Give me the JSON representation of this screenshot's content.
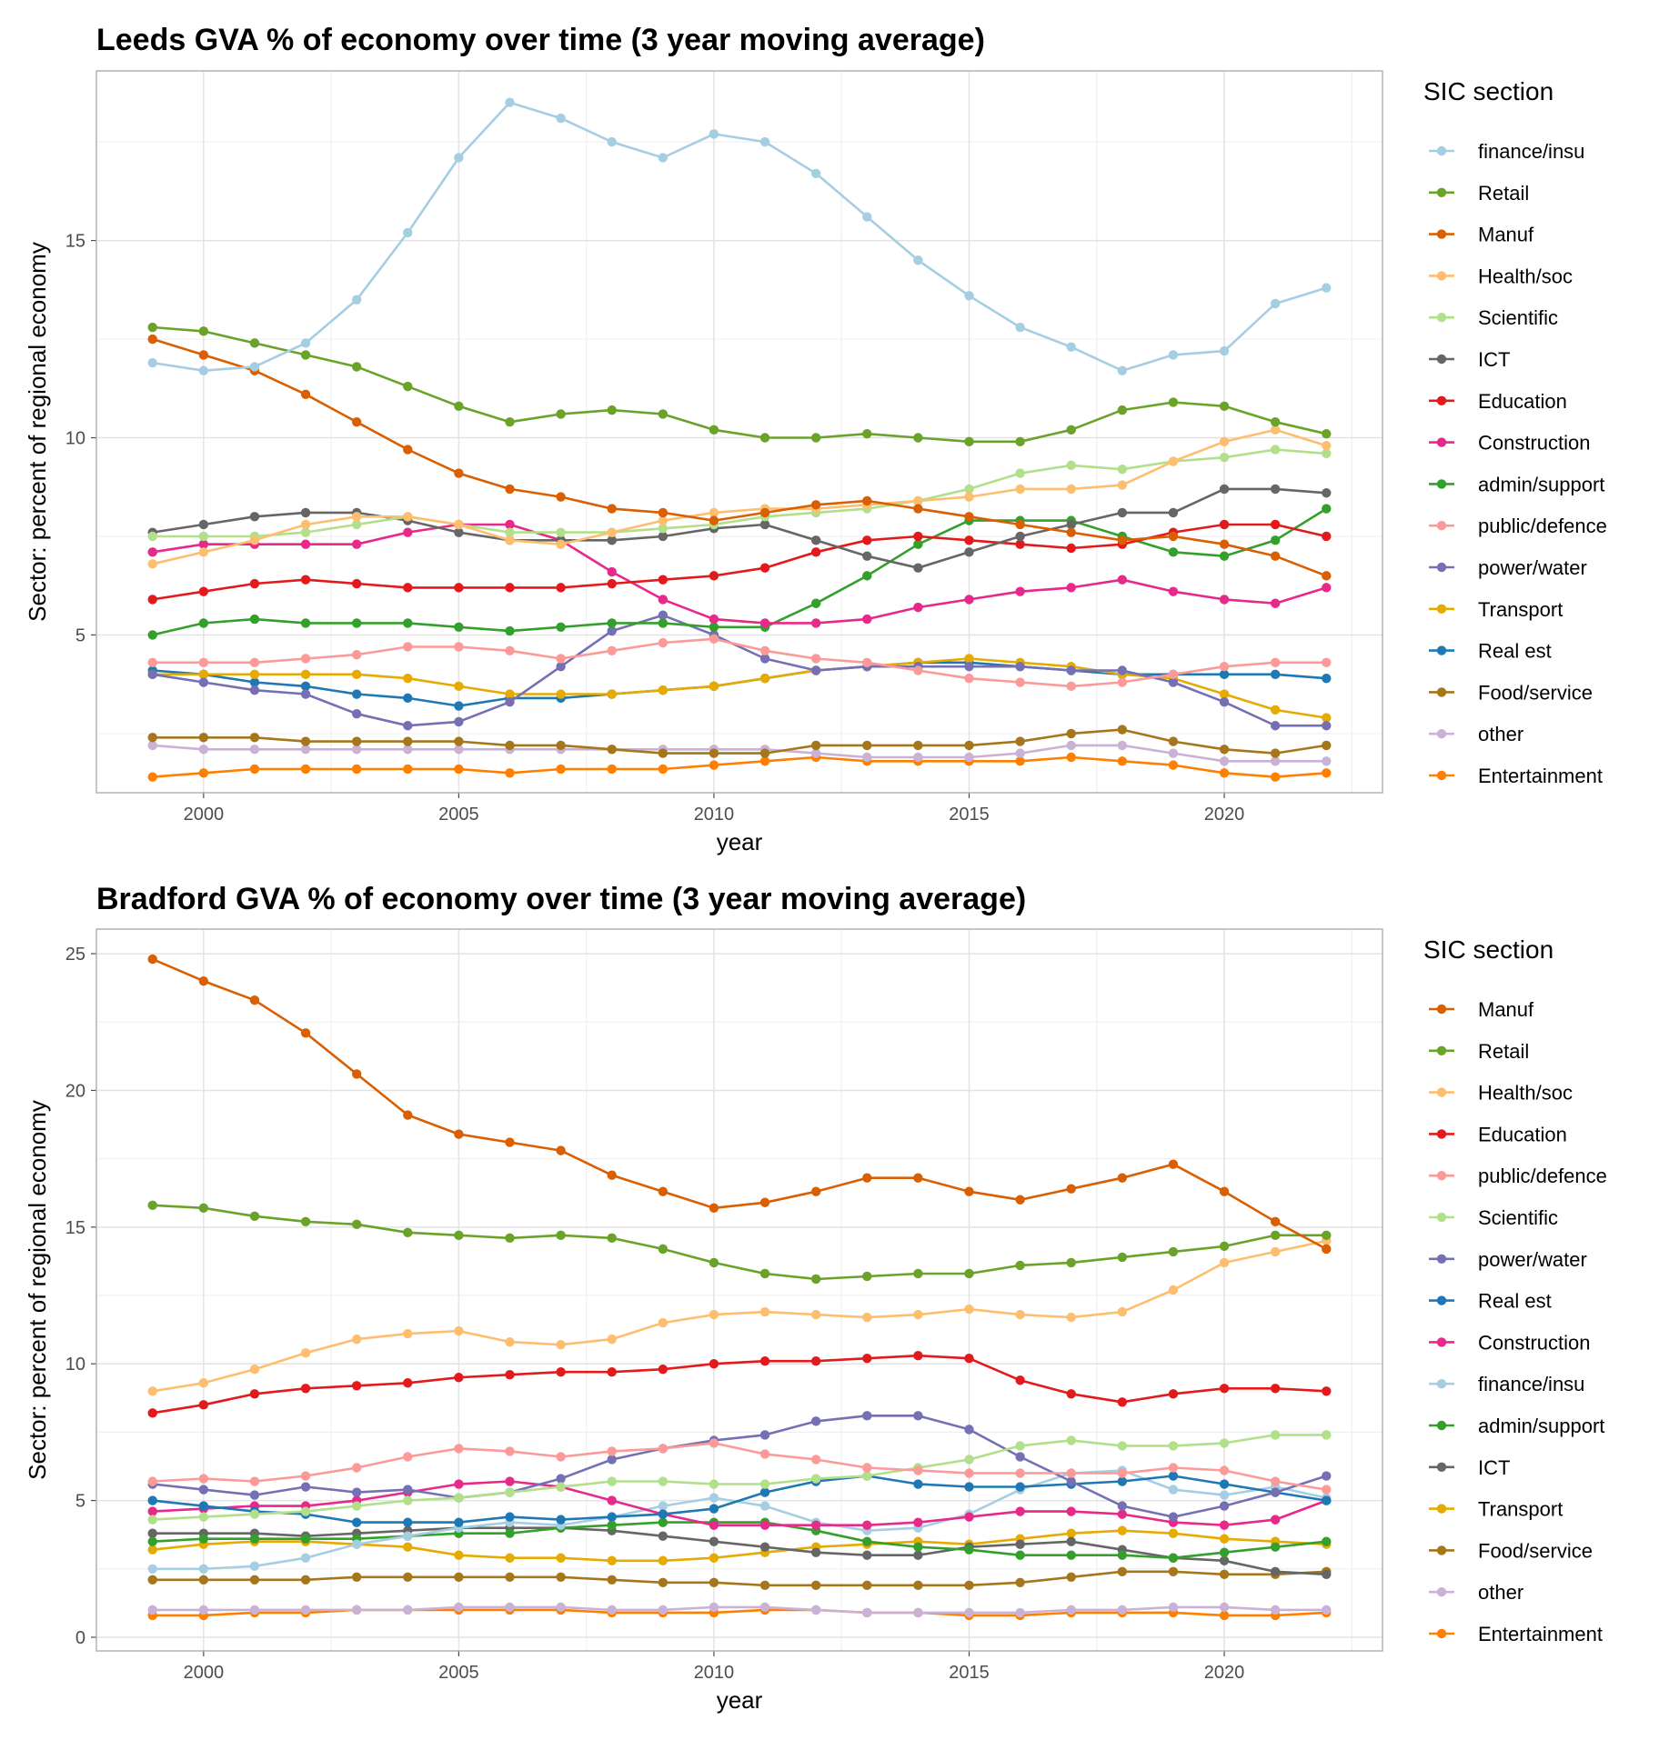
{
  "chart_data": [
    {
      "type": "line",
      "title": "Leeds GVA % of economy over time (3 year moving average)",
      "xlabel": "year",
      "ylabel": "Sector: percent of regional economy",
      "xlim": [
        1997.9,
        2023.1
      ],
      "ylim": [
        1.0,
        19.3
      ],
      "x_ticks": [
        2000,
        2005,
        2010,
        2015,
        2020
      ],
      "y_ticks": [
        5,
        10,
        15
      ],
      "grid": true,
      "legend_title": "SIC section",
      "legend_position": "right",
      "x": [
        1999,
        2000,
        2001,
        2002,
        2003,
        2004,
        2005,
        2006,
        2007,
        2008,
        2009,
        2010,
        2011,
        2012,
        2013,
        2014,
        2015,
        2016,
        2017,
        2018,
        2019,
        2020,
        2021,
        2022
      ],
      "series": [
        {
          "name": "finance/insu",
          "color": "#a6cee3",
          "values": [
            11.9,
            11.7,
            11.8,
            12.4,
            13.5,
            15.2,
            17.1,
            18.5,
            18.1,
            17.5,
            17.1,
            17.7,
            17.5,
            16.7,
            15.6,
            14.5,
            13.6,
            12.8,
            12.3,
            11.7,
            12.1,
            12.2,
            13.4,
            13.8
          ]
        },
        {
          "name": "Retail",
          "color": "#6ba22a",
          "values": [
            12.8,
            12.7,
            12.4,
            12.1,
            11.8,
            11.3,
            10.8,
            10.4,
            10.6,
            10.7,
            10.6,
            10.2,
            10.0,
            10.0,
            10.1,
            10.0,
            9.9,
            9.9,
            10.2,
            10.7,
            10.9,
            10.8,
            10.4,
            10.1
          ]
        },
        {
          "name": "Manuf",
          "color": "#d95f02",
          "values": [
            12.5,
            12.1,
            11.7,
            11.1,
            10.4,
            9.7,
            9.1,
            8.7,
            8.5,
            8.2,
            8.1,
            7.9,
            8.1,
            8.3,
            8.4,
            8.2,
            8.0,
            7.8,
            7.6,
            7.4,
            7.5,
            7.3,
            7.0,
            6.5
          ]
        },
        {
          "name": "Health/soc",
          "color": "#fdbf6f",
          "values": [
            6.8,
            7.1,
            7.4,
            7.8,
            8.0,
            8.0,
            7.8,
            7.4,
            7.3,
            7.6,
            7.9,
            8.1,
            8.2,
            8.2,
            8.3,
            8.4,
            8.5,
            8.7,
            8.7,
            8.8,
            9.4,
            9.9,
            10.2,
            9.8
          ]
        },
        {
          "name": "Scientific",
          "color": "#b2df8a",
          "values": [
            7.5,
            7.5,
            7.5,
            7.6,
            7.8,
            8.0,
            7.8,
            7.6,
            7.6,
            7.6,
            7.7,
            7.8,
            8.0,
            8.1,
            8.2,
            8.4,
            8.7,
            9.1,
            9.3,
            9.2,
            9.4,
            9.5,
            9.7,
            9.6
          ]
        },
        {
          "name": "ICT",
          "color": "#666666",
          "values": [
            7.6,
            7.8,
            8.0,
            8.1,
            8.1,
            7.9,
            7.6,
            7.4,
            7.4,
            7.4,
            7.5,
            7.7,
            7.8,
            7.4,
            7.0,
            6.7,
            7.1,
            7.5,
            7.8,
            8.1,
            8.1,
            8.7,
            8.7,
            8.6
          ]
        },
        {
          "name": "Education",
          "color": "#e31a1c",
          "values": [
            5.9,
            6.1,
            6.3,
            6.4,
            6.3,
            6.2,
            6.2,
            6.2,
            6.2,
            6.3,
            6.4,
            6.5,
            6.7,
            7.1,
            7.4,
            7.5,
            7.4,
            7.3,
            7.2,
            7.3,
            7.6,
            7.8,
            7.8,
            7.5
          ]
        },
        {
          "name": "Construction",
          "color": "#e7298a",
          "values": [
            7.1,
            7.3,
            7.3,
            7.3,
            7.3,
            7.6,
            7.8,
            7.8,
            7.4,
            6.6,
            5.9,
            5.4,
            5.3,
            5.3,
            5.4,
            5.7,
            5.9,
            6.1,
            6.2,
            6.4,
            6.1,
            5.9,
            5.8,
            6.2
          ]
        },
        {
          "name": "admin/support",
          "color": "#33a02c",
          "values": [
            5.0,
            5.3,
            5.4,
            5.3,
            5.3,
            5.3,
            5.2,
            5.1,
            5.2,
            5.3,
            5.3,
            5.2,
            5.2,
            5.8,
            6.5,
            7.3,
            7.9,
            7.9,
            7.9,
            7.5,
            7.1,
            7.0,
            7.4,
            8.2
          ]
        },
        {
          "name": "public/defence",
          "color": "#fb9a99",
          "values": [
            4.3,
            4.3,
            4.3,
            4.4,
            4.5,
            4.7,
            4.7,
            4.6,
            4.4,
            4.6,
            4.8,
            4.9,
            4.6,
            4.4,
            4.3,
            4.1,
            3.9,
            3.8,
            3.7,
            3.8,
            4.0,
            4.2,
            4.3,
            4.3
          ]
        },
        {
          "name": "power/water",
          "color": "#7570b3",
          "values": [
            4.0,
            3.8,
            3.6,
            3.5,
            3.0,
            2.7,
            2.8,
            3.3,
            4.2,
            5.1,
            5.5,
            5.0,
            4.4,
            4.1,
            4.2,
            4.2,
            4.2,
            4.2,
            4.1,
            4.1,
            3.8,
            3.3,
            2.7,
            2.7
          ]
        },
        {
          "name": "Transport",
          "color": "#e6ab02",
          "values": [
            4.0,
            4.0,
            4.0,
            4.0,
            4.0,
            3.9,
            3.7,
            3.5,
            3.5,
            3.5,
            3.6,
            3.7,
            3.9,
            4.1,
            4.2,
            4.3,
            4.4,
            4.3,
            4.2,
            4.0,
            3.9,
            3.5,
            3.1,
            2.9
          ]
        },
        {
          "name": "Real est",
          "color": "#1f78b4",
          "values": [
            4.1,
            4.0,
            3.8,
            3.7,
            3.5,
            3.4,
            3.2,
            3.4,
            3.4,
            3.5,
            3.6,
            3.7,
            3.9,
            4.1,
            4.2,
            4.3,
            4.3,
            4.2,
            4.1,
            4.0,
            4.0,
            4.0,
            4.0,
            3.9
          ]
        },
        {
          "name": "Food/service",
          "color": "#a6761d",
          "values": [
            2.4,
            2.4,
            2.4,
            2.3,
            2.3,
            2.3,
            2.3,
            2.2,
            2.2,
            2.1,
            2.0,
            2.0,
            2.0,
            2.2,
            2.2,
            2.2,
            2.2,
            2.3,
            2.5,
            2.6,
            2.3,
            2.1,
            2.0,
            2.2
          ]
        },
        {
          "name": "other",
          "color": "#cab2d6",
          "values": [
            2.2,
            2.1,
            2.1,
            2.1,
            2.1,
            2.1,
            2.1,
            2.1,
            2.1,
            2.1,
            2.1,
            2.1,
            2.1,
            2.0,
            1.9,
            1.9,
            1.9,
            2.0,
            2.2,
            2.2,
            2.0,
            1.8,
            1.8,
            1.8
          ]
        },
        {
          "name": "Entertainment",
          "color": "#ff7f00",
          "values": [
            1.4,
            1.5,
            1.6,
            1.6,
            1.6,
            1.6,
            1.6,
            1.5,
            1.6,
            1.6,
            1.6,
            1.7,
            1.8,
            1.9,
            1.8,
            1.8,
            1.8,
            1.8,
            1.9,
            1.8,
            1.7,
            1.5,
            1.4,
            1.5
          ]
        }
      ]
    },
    {
      "type": "line",
      "title": "Bradford GVA % of economy over time (3 year moving average)",
      "xlabel": "year",
      "ylabel": "Sector: percent of regional economy",
      "xlim": [
        1997.9,
        2023.1
      ],
      "ylim": [
        -0.5,
        25.9
      ],
      "x_ticks": [
        2000,
        2005,
        2010,
        2015,
        2020
      ],
      "y_ticks": [
        0,
        5,
        10,
        15,
        20,
        25
      ],
      "grid": true,
      "legend_title": "SIC section",
      "legend_position": "right",
      "x": [
        1999,
        2000,
        2001,
        2002,
        2003,
        2004,
        2005,
        2006,
        2007,
        2008,
        2009,
        2010,
        2011,
        2012,
        2013,
        2014,
        2015,
        2016,
        2017,
        2018,
        2019,
        2020,
        2021,
        2022
      ],
      "series": [
        {
          "name": "Manuf",
          "color": "#d95f02",
          "values": [
            24.8,
            24.0,
            23.3,
            22.1,
            20.6,
            19.1,
            18.4,
            18.1,
            17.8,
            16.9,
            16.3,
            15.7,
            15.9,
            16.3,
            16.8,
            16.8,
            16.3,
            16.0,
            16.4,
            16.8,
            17.3,
            16.3,
            15.2,
            14.2
          ]
        },
        {
          "name": "Retail",
          "color": "#6ba22a",
          "values": [
            15.8,
            15.7,
            15.4,
            15.2,
            15.1,
            14.8,
            14.7,
            14.6,
            14.7,
            14.6,
            14.2,
            13.7,
            13.3,
            13.1,
            13.2,
            13.3,
            13.3,
            13.6,
            13.7,
            13.9,
            14.1,
            14.3,
            14.7,
            14.7
          ]
        },
        {
          "name": "Health/soc",
          "color": "#fdbf6f",
          "values": [
            9.0,
            9.3,
            9.8,
            10.4,
            10.9,
            11.1,
            11.2,
            10.8,
            10.7,
            10.9,
            11.5,
            11.8,
            11.9,
            11.8,
            11.7,
            11.8,
            12.0,
            11.8,
            11.7,
            11.9,
            12.7,
            13.7,
            14.1,
            14.5
          ]
        },
        {
          "name": "Education",
          "color": "#e31a1c",
          "values": [
            8.2,
            8.5,
            8.9,
            9.1,
            9.2,
            9.3,
            9.5,
            9.6,
            9.7,
            9.7,
            9.8,
            10.0,
            10.1,
            10.1,
            10.2,
            10.3,
            10.2,
            9.4,
            8.9,
            8.6,
            8.9,
            9.1,
            9.1,
            9.0
          ]
        },
        {
          "name": "public/defence",
          "color": "#fb9a99",
          "values": [
            5.7,
            5.8,
            5.7,
            5.9,
            6.2,
            6.6,
            6.9,
            6.8,
            6.6,
            6.8,
            6.9,
            7.1,
            6.7,
            6.5,
            6.2,
            6.1,
            6.0,
            6.0,
            6.0,
            6.0,
            6.2,
            6.1,
            5.7,
            5.4
          ]
        },
        {
          "name": "Scientific",
          "color": "#b2df8a",
          "values": [
            4.3,
            4.4,
            4.5,
            4.6,
            4.8,
            5.0,
            5.1,
            5.3,
            5.5,
            5.7,
            5.7,
            5.6,
            5.6,
            5.8,
            5.9,
            6.2,
            6.5,
            7.0,
            7.2,
            7.0,
            7.0,
            7.1,
            7.4,
            7.4
          ]
        },
        {
          "name": "power/water",
          "color": "#7570b3",
          "values": [
            5.6,
            5.4,
            5.2,
            5.5,
            5.3,
            5.4,
            5.1,
            5.3,
            5.8,
            6.5,
            6.9,
            7.2,
            7.4,
            7.9,
            8.1,
            8.1,
            7.6,
            6.6,
            5.7,
            4.8,
            4.4,
            4.8,
            5.3,
            5.9
          ]
        },
        {
          "name": "Real est",
          "color": "#1f78b4",
          "values": [
            5.0,
            4.8,
            4.6,
            4.5,
            4.2,
            4.2,
            4.2,
            4.4,
            4.3,
            4.4,
            4.5,
            4.7,
            5.3,
            5.7,
            5.9,
            5.6,
            5.5,
            5.5,
            5.6,
            5.7,
            5.9,
            5.6,
            5.3,
            5.0
          ]
        },
        {
          "name": "Construction",
          "color": "#e7298a",
          "values": [
            4.6,
            4.7,
            4.8,
            4.8,
            5.0,
            5.3,
            5.6,
            5.7,
            5.5,
            5.0,
            4.5,
            4.1,
            4.1,
            4.1,
            4.1,
            4.2,
            4.4,
            4.6,
            4.6,
            4.5,
            4.2,
            4.1,
            4.3,
            5.0
          ]
        },
        {
          "name": "finance/insu",
          "color": "#a6cee3",
          "values": [
            2.5,
            2.5,
            2.6,
            2.9,
            3.4,
            3.7,
            4.0,
            4.2,
            4.1,
            4.4,
            4.8,
            5.1,
            4.8,
            4.2,
            3.9,
            4.0,
            4.5,
            5.4,
            6.0,
            6.1,
            5.4,
            5.2,
            5.5,
            5.1
          ]
        },
        {
          "name": "admin/support",
          "color": "#33a02c",
          "values": [
            3.5,
            3.6,
            3.6,
            3.6,
            3.6,
            3.7,
            3.8,
            3.8,
            4.0,
            4.1,
            4.2,
            4.2,
            4.2,
            3.9,
            3.5,
            3.3,
            3.2,
            3.0,
            3.0,
            3.0,
            2.9,
            3.1,
            3.3,
            3.5
          ]
        },
        {
          "name": "ICT",
          "color": "#666666",
          "values": [
            3.8,
            3.8,
            3.8,
            3.7,
            3.8,
            3.9,
            4.0,
            4.0,
            4.0,
            3.9,
            3.7,
            3.5,
            3.3,
            3.1,
            3.0,
            3.0,
            3.3,
            3.4,
            3.5,
            3.2,
            2.9,
            2.8,
            2.4,
            2.3
          ]
        },
        {
          "name": "Transport",
          "color": "#e6ab02",
          "values": [
            3.2,
            3.4,
            3.5,
            3.5,
            3.4,
            3.3,
            3.0,
            2.9,
            2.9,
            2.8,
            2.8,
            2.9,
            3.1,
            3.3,
            3.4,
            3.5,
            3.4,
            3.6,
            3.8,
            3.9,
            3.8,
            3.6,
            3.5,
            3.4
          ]
        },
        {
          "name": "Food/service",
          "color": "#a6761d",
          "values": [
            2.1,
            2.1,
            2.1,
            2.1,
            2.2,
            2.2,
            2.2,
            2.2,
            2.2,
            2.1,
            2.0,
            2.0,
            1.9,
            1.9,
            1.9,
            1.9,
            1.9,
            2.0,
            2.2,
            2.4,
            2.4,
            2.3,
            2.3,
            2.4
          ]
        },
        {
          "name": "other",
          "color": "#cab2d6",
          "values": [
            1.0,
            1.0,
            1.0,
            1.0,
            1.0,
            1.0,
            1.1,
            1.1,
            1.1,
            1.0,
            1.0,
            1.1,
            1.1,
            1.0,
            0.9,
            0.9,
            0.9,
            0.9,
            1.0,
            1.0,
            1.1,
            1.1,
            1.0,
            1.0
          ]
        },
        {
          "name": "Entertainment",
          "color": "#ff7f00",
          "values": [
            0.8,
            0.8,
            0.9,
            0.9,
            1.0,
            1.0,
            1.0,
            1.0,
            1.0,
            0.9,
            0.9,
            0.9,
            1.0,
            1.0,
            0.9,
            0.9,
            0.8,
            0.8,
            0.9,
            0.9,
            0.9,
            0.8,
            0.8,
            0.9
          ]
        }
      ]
    }
  ]
}
